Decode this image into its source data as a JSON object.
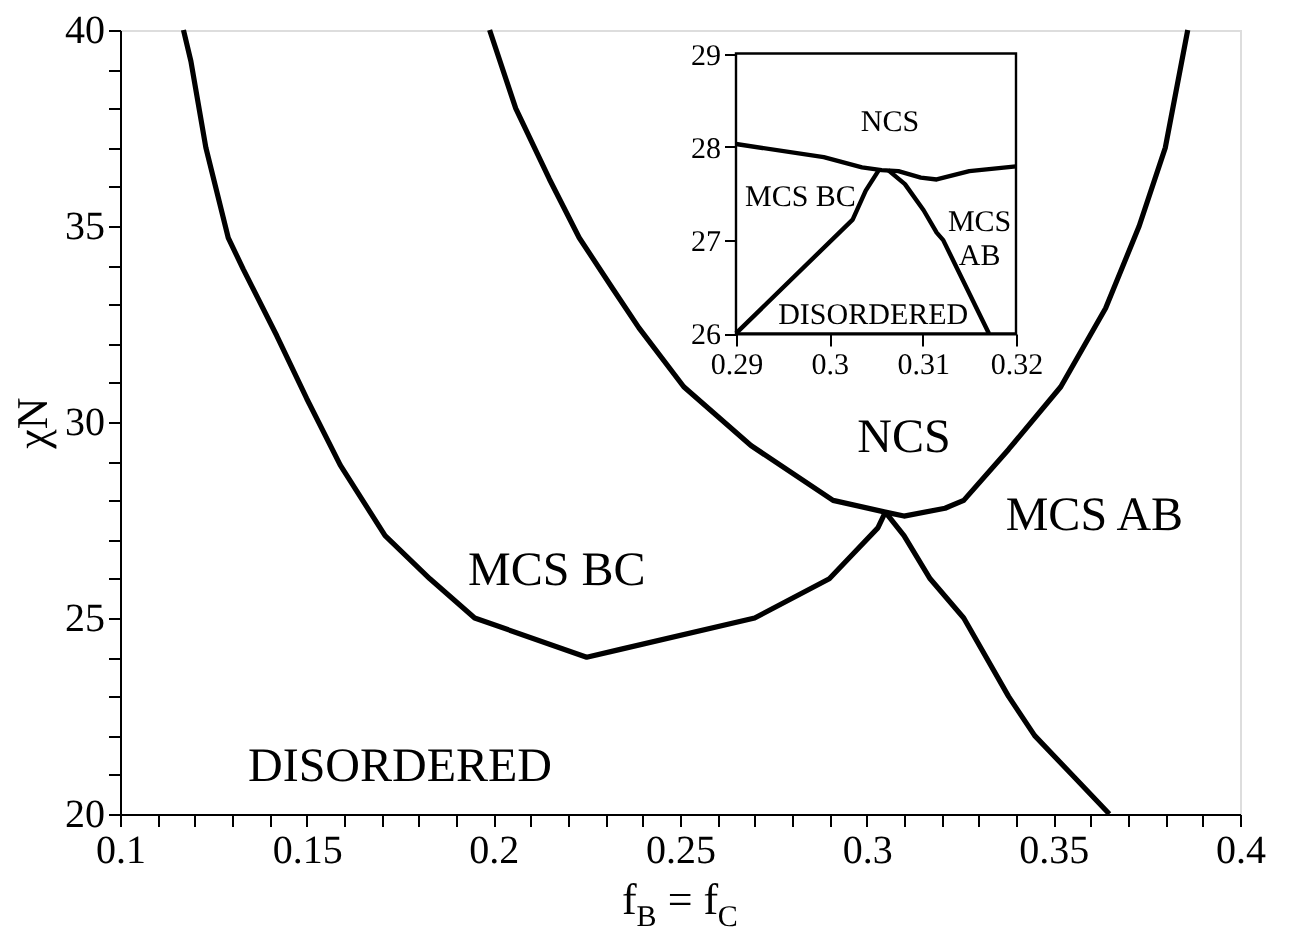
{
  "chart_data": [
    {
      "type": "line",
      "xlabel": "f$_{B}$ = f$_{C}$",
      "ylabel": "χN",
      "xlim": [
        0.1,
        0.4
      ],
      "ylim": [
        20,
        40
      ],
      "xticks": [
        0.1,
        {
          "value": 0.11,
          "label": null
        },
        {
          "value": 0.12,
          "label": null
        },
        {
          "value": 0.13,
          "label": null
        },
        {
          "value": 0.14,
          "label": null
        },
        0.15,
        {
          "value": 0.16,
          "label": null
        },
        {
          "value": 0.17,
          "label": null
        },
        {
          "value": 0.18,
          "label": null
        },
        {
          "value": 0.19,
          "label": null
        },
        0.2,
        {
          "value": 0.21,
          "label": null
        },
        {
          "value": 0.22,
          "label": null
        },
        {
          "value": 0.23,
          "label": null
        },
        {
          "value": 0.24,
          "label": null
        },
        0.25,
        {
          "value": 0.26,
          "label": null
        },
        {
          "value": 0.27,
          "label": null
        },
        {
          "value": 0.28,
          "label": null
        },
        {
          "value": 0.29,
          "label": null
        },
        0.3,
        {
          "value": 0.31,
          "label": null
        },
        {
          "value": 0.32,
          "label": null
        },
        {
          "value": 0.33,
          "label": null
        },
        {
          "value": 0.34,
          "label": null
        },
        0.35,
        {
          "value": 0.36,
          "label": null
        },
        {
          "value": 0.37,
          "label": null
        },
        {
          "value": 0.38,
          "label": null
        },
        {
          "value": 0.39,
          "label": null
        },
        0.4
      ],
      "yticks": [
        20,
        {
          "value": 21,
          "label": null
        },
        {
          "value": 22,
          "label": null
        },
        {
          "value": 23,
          "label": null
        },
        {
          "value": 24,
          "label": null
        },
        25,
        {
          "value": 26,
          "label": null
        },
        {
          "value": 27,
          "label": null
        },
        {
          "value": 28,
          "label": null
        },
        {
          "value": 29,
          "label": null
        },
        30,
        {
          "value": 31,
          "label": null
        },
        {
          "value": 32,
          "label": null
        },
        {
          "value": 33,
          "label": null
        },
        {
          "value": 34,
          "label": null
        },
        35,
        {
          "value": 36,
          "label": null
        },
        {
          "value": 37,
          "label": null
        },
        {
          "value": 38,
          "label": null
        },
        {
          "value": 39,
          "label": null
        },
        40
      ],
      "grid": false,
      "series": [
        {
          "color": "#000000",
          "x": [
            0.117,
            0.119,
            0.123,
            0.129,
            0.133,
            0.142,
            0.15,
            0.159,
            0.171,
            0.183,
            0.195,
            0.225,
            0.234,
            0.27,
            0.29,
            0.296,
            0.303,
            0.305
          ],
          "values": [
            40,
            39.2,
            37.0,
            34.7,
            33.9,
            32.2,
            30.6,
            28.9,
            27.1,
            26.0,
            25.0,
            24.0,
            24.2,
            25.0,
            26.0,
            26.6,
            27.3,
            27.7
          ]
        },
        {
          "color": "#000000",
          "x": [
            0.199,
            0.206,
            0.215,
            0.223,
            0.232,
            0.239,
            0.251,
            0.269,
            0.291,
            0.305,
            0.31,
            0.321,
            0.326,
            0.338,
            0.352,
            0.364,
            0.373,
            0.38,
            0.386
          ],
          "values": [
            40,
            38.0,
            36.2,
            34.7,
            33.4,
            32.4,
            30.9,
            29.4,
            28.0,
            27.7,
            27.6,
            27.8,
            28.0,
            29.3,
            30.9,
            32.9,
            35.0,
            37.0,
            40
          ]
        },
        {
          "color": "#000000",
          "x": [
            0.305,
            0.31,
            0.317,
            0.326,
            0.338,
            0.345,
            0.355,
            0.365
          ],
          "values": [
            27.7,
            27.1,
            26.0,
            25.0,
            23.0,
            22.0,
            21.0,
            20.0
          ]
        }
      ],
      "annotations": [
        "DISORDERED",
        "MCS BC",
        "NCS",
        "MCS AB"
      ]
    },
    {
      "type": "line",
      "xlim": [
        0.29,
        0.32
      ],
      "ylim": [
        26,
        29
      ],
      "xticks": [
        0.29,
        0.3,
        0.31,
        0.32
      ],
      "yticks": [
        26,
        27,
        28,
        29
      ],
      "grid": false,
      "series": [
        {
          "color": "#000000",
          "x": [
            0.29,
            0.2994,
            0.3035,
            0.3056,
            0.3074,
            0.3098,
            0.3115,
            0.315,
            0.32
          ],
          "values": [
            28.03,
            27.89,
            27.78,
            27.75,
            27.74,
            27.67,
            27.65,
            27.74,
            27.79
          ]
        },
        {
          "color": "#000000",
          "x": [
            0.29,
            0.3025,
            0.3039,
            0.3053
          ],
          "values": [
            26.0,
            27.22,
            27.53,
            27.75
          ]
        },
        {
          "color": "#000000",
          "x": [
            0.3063,
            0.3081,
            0.3101,
            0.3115,
            0.3122,
            0.3171
          ],
          "values": [
            27.75,
            27.6,
            27.32,
            27.08,
            27.0,
            26.0
          ]
        }
      ],
      "annotations": [
        "NCS",
        "MCS BC",
        "MCS\nAB",
        "DISORDERED"
      ]
    }
  ]
}
